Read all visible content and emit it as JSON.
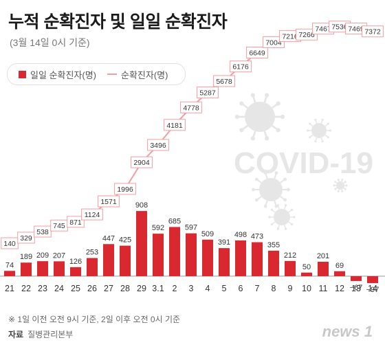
{
  "title": "누적 순확진자 및 일일 순확진자",
  "subtitle": "(3월 14일 0시 기준)",
  "legend": {
    "daily": "일일 순확진자(명)",
    "cumulative": "순확진자(명)"
  },
  "watermark": "COVID-19",
  "footnote": "※ 1일 이전 오전 9시 기준, 2일 이후 오전 0시 기준",
  "source_label": "자료",
  "source": "질병관리본부",
  "brand": "news 1",
  "colors": {
    "bar": "#d9282f",
    "line": "#f19ea2",
    "box": "#f19ea2",
    "watermark": "#e6e6e6"
  },
  "chart_data": {
    "type": "bar",
    "categories": [
      "21",
      "22",
      "23",
      "24",
      "25",
      "26",
      "27",
      "28",
      "29",
      "3.1",
      "2",
      "3",
      "4",
      "5",
      "6",
      "7",
      "8",
      "9",
      "10",
      "11",
      "12",
      "13",
      "14"
    ],
    "series": [
      {
        "name": "일일 순확진자(명)",
        "type": "bar",
        "values": [
          74,
          189,
          209,
          207,
          126,
          253,
          447,
          425,
          908,
          592,
          685,
          597,
          509,
          391,
          498,
          473,
          355,
          212,
          50,
          201,
          69,
          -67,
          -97
        ]
      },
      {
        "name": "순확진자(명)",
        "type": "line",
        "values": [
          140,
          329,
          538,
          745,
          871,
          1124,
          1571,
          1996,
          2904,
          3496,
          4181,
          4778,
          5287,
          5678,
          6176,
          6649,
          7004,
          7216,
          7266,
          7467,
          7536,
          7469,
          7372
        ]
      }
    ]
  }
}
